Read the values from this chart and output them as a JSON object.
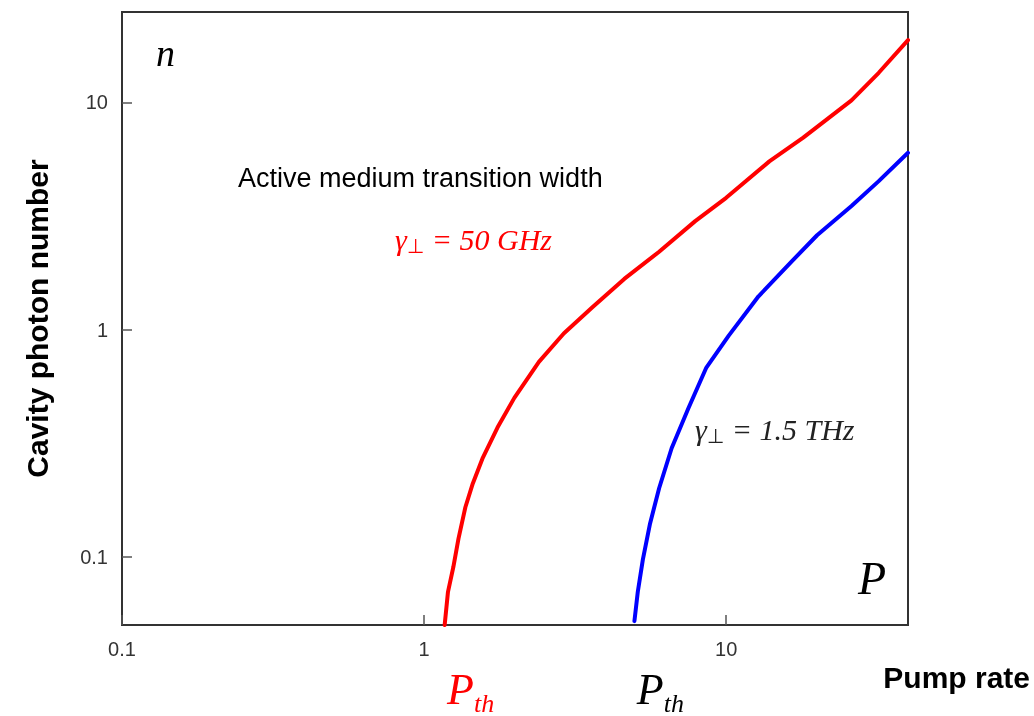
{
  "chart_data": {
    "type": "line",
    "xlabel": "Pump rate",
    "ylabel": "Cavity photon number",
    "log": "xy",
    "grid": false,
    "legend": false,
    "marker": "none",
    "line_style": "solid",
    "xlim": [
      0.1,
      40
    ],
    "xticks": [
      0.1,
      1,
      10
    ],
    "ylim": [
      0.05,
      25
    ],
    "yticks": [
      0.1,
      1,
      10
    ],
    "series": [
      {
        "name": "γ$_{⊥}$ = 50 GHz",
        "color": "#ff0000",
        "x": [
          1.17,
          1.2,
          1.25,
          1.3,
          1.37,
          1.45,
          1.56,
          1.75,
          1.99,
          2.4,
          2.9,
          3.6,
          4.6,
          6,
          7.9,
          10,
          13.9,
          18,
          26,
          32,
          40
        ],
        "values": [
          0.05,
          0.07,
          0.09,
          0.12,
          0.165,
          0.21,
          0.27,
          0.37,
          0.5,
          0.72,
          0.96,
          1.25,
          1.67,
          2.2,
          3.0,
          3.8,
          5.5,
          7.0,
          10.2,
          13.5,
          18.8
        ]
      },
      {
        "name": "γ$_{⊥}$ = 1.5 THz",
        "color": "#0000ff",
        "x": [
          4.97,
          5.1,
          5.3,
          5.6,
          6.0,
          6.6,
          7.5,
          8.6,
          10.2,
          12.8,
          16.4,
          20,
          26,
          32,
          40
        ],
        "values": [
          0.052,
          0.07,
          0.097,
          0.14,
          0.2,
          0.3,
          0.45,
          0.68,
          0.94,
          1.4,
          1.98,
          2.6,
          3.5,
          4.5,
          6.0
        ]
      }
    ],
    "annotations": [
      "n",
      "P",
      "Active medium transition width",
      "P$_{th}$",
      "P$_{th}$"
    ]
  }
}
